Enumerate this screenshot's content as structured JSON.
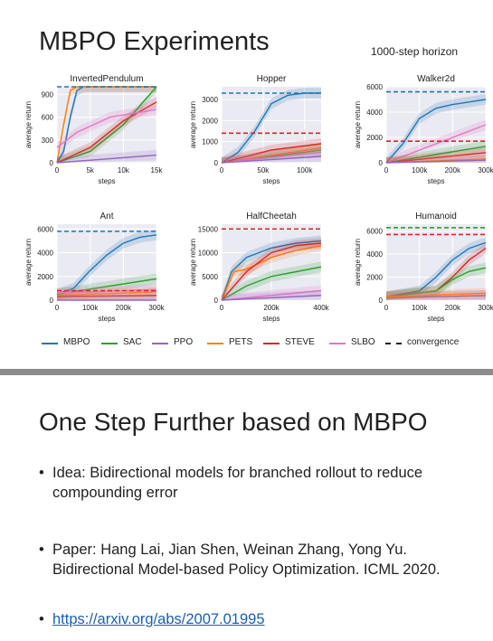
{
  "slide1": {
    "title": "MBPO Experiments",
    "horizon_note": "1000-step horizon",
    "colors": {
      "MBPO": "#1f77b4",
      "SAC": "#2ca02c",
      "PPO": "#9467bd",
      "PETS": "#ff7f0e",
      "STEVE": "#d62728",
      "SLBO": "#e377c2",
      "convergence": "#222222"
    },
    "legend": [
      {
        "key": "MBPO",
        "label": "MBPO",
        "dashed": false
      },
      {
        "key": "SAC",
        "label": "SAC",
        "dashed": false
      },
      {
        "key": "PPO",
        "label": "PPO",
        "dashed": false
      },
      {
        "key": "PETS",
        "label": "PETS",
        "dashed": false
      },
      {
        "key": "STEVE",
        "label": "STEVE",
        "dashed": false
      },
      {
        "key": "SLBO",
        "label": "SLBO",
        "dashed": false
      },
      {
        "key": "convergence",
        "label": "convergence",
        "dashed": true
      }
    ]
  },
  "chart_data": [
    {
      "type": "line",
      "title": "InvertedPendulum",
      "xlabel": "steps",
      "ylabel": "average return",
      "xlim": [
        0,
        15000
      ],
      "ylim": [
        0,
        1000
      ],
      "x_ticks": [
        0,
        5000,
        10000,
        15000
      ],
      "x_tick_labels": [
        "0",
        "5k",
        "10k",
        "15k"
      ],
      "y_ticks": [
        0,
        300,
        600,
        900
      ],
      "y_tick_labels": [
        "0",
        "300",
        "600",
        "900"
      ],
      "convergence": [
        {
          "series": "MBPO",
          "value": 1000
        }
      ],
      "series": [
        {
          "name": "MBPO",
          "x": [
            0,
            1000,
            2000,
            3000,
            4000,
            15000
          ],
          "y": [
            0,
            150,
            600,
            950,
            1000,
            1000
          ]
        },
        {
          "name": "PETS",
          "x": [
            0,
            1000,
            2000,
            3000,
            15000
          ],
          "y": [
            0,
            500,
            950,
            1000,
            1000
          ]
        },
        {
          "name": "SAC",
          "x": [
            0,
            5000,
            10000,
            15000
          ],
          "y": [
            0,
            150,
            500,
            1000
          ]
        },
        {
          "name": "STEVE",
          "x": [
            0,
            5000,
            10000,
            15000
          ],
          "y": [
            0,
            200,
            550,
            800
          ]
        },
        {
          "name": "SLBO",
          "x": [
            0,
            3000,
            8000,
            15000
          ],
          "y": [
            200,
            400,
            600,
            700
          ]
        },
        {
          "name": "PPO",
          "x": [
            0,
            15000
          ],
          "y": [
            0,
            100
          ]
        }
      ]
    },
    {
      "type": "line",
      "title": "Hopper",
      "xlabel": "steps",
      "ylabel": "average return",
      "xlim": [
        0,
        120000
      ],
      "ylim": [
        0,
        3600
      ],
      "x_ticks": [
        0,
        50000,
        100000
      ],
      "x_tick_labels": [
        "0",
        "50k",
        "100k"
      ],
      "y_ticks": [
        0,
        1000,
        2000,
        3000
      ],
      "y_tick_labels": [
        "0",
        "1000",
        "2000",
        "3000"
      ],
      "convergence": [
        {
          "series": "MBPO",
          "value": 3300
        },
        {
          "series": "STEVE",
          "value": 1400
        }
      ],
      "series": [
        {
          "name": "MBPO",
          "x": [
            0,
            20000,
            40000,
            60000,
            80000,
            100000,
            120000
          ],
          "y": [
            0,
            500,
            1500,
            2800,
            3200,
            3300,
            3300
          ]
        },
        {
          "name": "SAC",
          "x": [
            0,
            120000
          ],
          "y": [
            0,
            600
          ]
        },
        {
          "name": "PETS",
          "x": [
            0,
            120000
          ],
          "y": [
            0,
            700
          ]
        },
        {
          "name": "STEVE",
          "x": [
            0,
            60000,
            120000
          ],
          "y": [
            0,
            600,
            900
          ]
        },
        {
          "name": "SLBO",
          "x": [
            0,
            120000
          ],
          "y": [
            0,
            500
          ]
        },
        {
          "name": "PPO",
          "x": [
            0,
            120000
          ],
          "y": [
            0,
            300
          ]
        }
      ]
    },
    {
      "type": "line",
      "title": "Walker2d",
      "xlabel": "steps",
      "ylabel": "average return",
      "xlim": [
        0,
        300000
      ],
      "ylim": [
        0,
        6000
      ],
      "x_ticks": [
        0,
        100000,
        200000,
        300000
      ],
      "x_tick_labels": [
        "0",
        "100k",
        "200k",
        "300k"
      ],
      "y_ticks": [
        0,
        2000,
        4000,
        6000
      ],
      "y_tick_labels": [
        "0",
        "2000",
        "4000",
        "6000"
      ],
      "convergence": [
        {
          "series": "MBPO",
          "value": 5600
        },
        {
          "series": "STEVE",
          "value": 1700
        }
      ],
      "series": [
        {
          "name": "MBPO",
          "x": [
            0,
            50000,
            100000,
            150000,
            200000,
            250000,
            300000
          ],
          "y": [
            0,
            1500,
            3500,
            4300,
            4600,
            4800,
            5000
          ]
        },
        {
          "name": "SAC",
          "x": [
            0,
            300000
          ],
          "y": [
            0,
            1300
          ]
        },
        {
          "name": "SLBO",
          "x": [
            0,
            300000
          ],
          "y": [
            0,
            3000
          ]
        },
        {
          "name": "STEVE",
          "x": [
            0,
            300000
          ],
          "y": [
            0,
            800
          ]
        },
        {
          "name": "PETS",
          "x": [
            0,
            300000
          ],
          "y": [
            0,
            300
          ]
        },
        {
          "name": "PPO",
          "x": [
            0,
            300000
          ],
          "y": [
            0,
            200
          ]
        }
      ]
    },
    {
      "type": "line",
      "title": "Ant",
      "xlabel": "steps",
      "ylabel": "average return",
      "xlim": [
        0,
        300000
      ],
      "ylim": [
        0,
        6400
      ],
      "x_ticks": [
        0,
        100000,
        200000,
        300000
      ],
      "x_tick_labels": [
        "0",
        "100k",
        "200k",
        "300k"
      ],
      "y_ticks": [
        0,
        2000,
        4000,
        6000
      ],
      "y_tick_labels": [
        "0",
        "2000",
        "4000",
        "6000"
      ],
      "convergence": [
        {
          "series": "MBPO",
          "value": 5800
        },
        {
          "series": "STEVE",
          "value": 800
        }
      ],
      "series": [
        {
          "name": "MBPO",
          "x": [
            0,
            50000,
            100000,
            150000,
            200000,
            250000,
            300000
          ],
          "y": [
            500,
            1000,
            2500,
            3800,
            4800,
            5300,
            5500
          ]
        },
        {
          "name": "SAC",
          "x": [
            0,
            300000
          ],
          "y": [
            500,
            1800
          ]
        },
        {
          "name": "STEVE",
          "x": [
            0,
            300000
          ],
          "y": [
            300,
            400
          ]
        },
        {
          "name": "PETS",
          "x": [
            0,
            300000
          ],
          "y": [
            400,
            700
          ]
        },
        {
          "name": "SLBO",
          "x": [
            0,
            300000
          ],
          "y": [
            600,
            900
          ]
        },
        {
          "name": "PPO",
          "x": [
            0,
            300000
          ],
          "y": [
            0,
            0
          ]
        }
      ]
    },
    {
      "type": "line",
      "title": "HalfCheetah",
      "xlabel": "steps",
      "ylabel": "average return",
      "xlim": [
        0,
        400000
      ],
      "ylim": [
        0,
        16000
      ],
      "x_ticks": [
        0,
        200000,
        400000
      ],
      "x_tick_labels": [
        "0",
        "200k",
        "400k"
      ],
      "y_ticks": [
        0,
        5000,
        10000,
        15000
      ],
      "y_tick_labels": [
        "0",
        "5000",
        "10000",
        "15000"
      ],
      "convergence": [
        {
          "series": "MBPO",
          "value": 15000
        },
        {
          "series": "STEVE",
          "value": 15000
        }
      ],
      "series": [
        {
          "name": "MBPO",
          "x": [
            0,
            40000,
            100000,
            200000,
            300000,
            400000
          ],
          "y": [
            0,
            6000,
            9000,
            11000,
            12000,
            12500
          ]
        },
        {
          "name": "PETS",
          "x": [
            0,
            50000,
            100000,
            200000,
            300000,
            400000
          ],
          "y": [
            0,
            6000,
            6500,
            9000,
            10500,
            11500
          ]
        },
        {
          "name": "SAC",
          "x": [
            0,
            100000,
            200000,
            300000,
            400000
          ],
          "y": [
            0,
            3000,
            5000,
            6000,
            7000
          ]
        },
        {
          "name": "STEVE",
          "x": [
            0,
            100000,
            200000,
            300000,
            400000
          ],
          "y": [
            0,
            6000,
            10000,
            11500,
            12000
          ]
        },
        {
          "name": "SLBO",
          "x": [
            0,
            400000
          ],
          "y": [
            0,
            2000
          ]
        },
        {
          "name": "PPO",
          "x": [
            0,
            400000
          ],
          "y": [
            0,
            1000
          ]
        }
      ]
    },
    {
      "type": "line",
      "title": "Humanoid",
      "xlabel": "steps",
      "ylabel": "average return",
      "xlim": [
        0,
        300000
      ],
      "ylim": [
        0,
        6600
      ],
      "x_ticks": [
        0,
        100000,
        200000,
        300000
      ],
      "x_tick_labels": [
        "0",
        "100k",
        "200k",
        "300k"
      ],
      "y_ticks": [
        0,
        2000,
        4000,
        6000
      ],
      "y_tick_labels": [
        "0",
        "2000",
        "4000",
        "6000"
      ],
      "convergence": [
        {
          "series": "SAC",
          "value": 6300
        },
        {
          "series": "STEVE",
          "value": 5700
        }
      ],
      "series": [
        {
          "name": "MBPO",
          "x": [
            0,
            100000,
            150000,
            200000,
            250000,
            300000
          ],
          "y": [
            300,
            800,
            2000,
            3500,
            4500,
            5000
          ]
        },
        {
          "name": "STEVE",
          "x": [
            0,
            150000,
            200000,
            250000,
            300000
          ],
          "y": [
            300,
            800,
            2000,
            3500,
            4500
          ]
        },
        {
          "name": "SAC",
          "x": [
            0,
            150000,
            200000,
            250000,
            300000
          ],
          "y": [
            300,
            800,
            1800,
            2500,
            2800
          ]
        },
        {
          "name": "SLBO",
          "x": [
            0,
            300000
          ],
          "y": [
            200,
            400
          ]
        },
        {
          "name": "PPO",
          "x": [
            0,
            300000
          ],
          "y": [
            200,
            400
          ]
        },
        {
          "name": "PETS",
          "x": [
            0,
            300000
          ],
          "y": [
            300,
            600
          ]
        }
      ]
    }
  ],
  "slide2": {
    "title": "One Step Further based on MBPO",
    "bullets": [
      {
        "dot": "•",
        "text": "Idea: Bidirectional models for branched rollout to reduce compounding error"
      },
      {
        "dot": "•",
        "text": "Paper: Hang Lai, Jian Shen, Weinan Zhang, Yong Yu. Bidirectional Model-based Policy Optimization. ICML 2020."
      },
      {
        "dot": "•",
        "text": "https://arxiv.org/abs/2007.01995"
      }
    ]
  }
}
